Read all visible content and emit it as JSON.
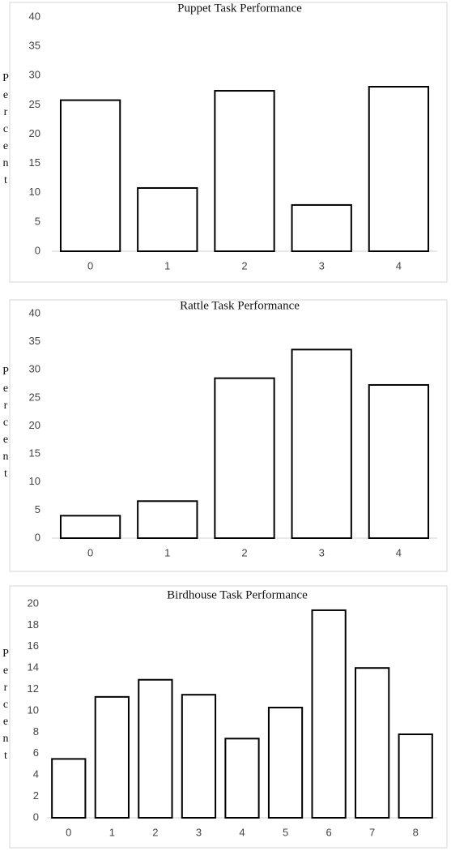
{
  "chart_data": [
    {
      "type": "bar",
      "title": "Puppet Task Performance",
      "ylabel": "Percent",
      "xlabel": "",
      "categories": [
        "0",
        "1",
        "2",
        "3",
        "4"
      ],
      "values": [
        25.8,
        10.8,
        27.4,
        7.9,
        28.1
      ],
      "ylim": [
        0,
        40
      ],
      "yticks": [
        0,
        5,
        10,
        15,
        20,
        25,
        30,
        35,
        40
      ],
      "grid": false,
      "legend": "none"
    },
    {
      "type": "bar",
      "title": "Rattle Task Performance",
      "ylabel": "Percent",
      "xlabel": "",
      "categories": [
        "0",
        "1",
        "2",
        "3",
        "4"
      ],
      "values": [
        4.0,
        6.6,
        28.5,
        33.6,
        27.3
      ],
      "ylim": [
        0,
        40
      ],
      "yticks": [
        0,
        5,
        10,
        15,
        20,
        25,
        30,
        35,
        40
      ],
      "grid": false,
      "legend": "none"
    },
    {
      "type": "bar",
      "title": "Birdhouse Task Performance",
      "ylabel": "Percent",
      "xlabel": "",
      "categories": [
        "0",
        "1",
        "2",
        "3",
        "4",
        "5",
        "6",
        "7",
        "8"
      ],
      "values": [
        5.5,
        11.3,
        12.9,
        11.5,
        7.4,
        10.3,
        19.4,
        14.0,
        7.8
      ],
      "ylim": [
        0,
        20
      ],
      "yticks": [
        0,
        2,
        4,
        6,
        8,
        10,
        12,
        14,
        16,
        18,
        20
      ],
      "grid": false,
      "legend": "none"
    }
  ]
}
